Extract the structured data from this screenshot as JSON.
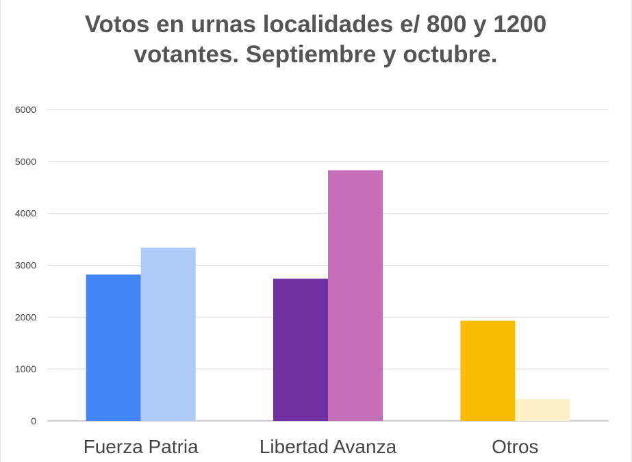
{
  "chart_data": {
    "type": "bar",
    "title": "Votos en urnas localidades e/ 800 y 1200 votantes. Septiembre y octubre.",
    "xlabel": "",
    "ylabel": "",
    "categories": [
      "Fuerza Patria",
      "Libertad Avanza",
      "Otros"
    ],
    "series": [
      {
        "values": [
          2820,
          2740,
          1930
        ],
        "colors": [
          "#4285f4",
          "#7030a0",
          "#fbbc04"
        ]
      },
      {
        "values": [
          3340,
          4830,
          420
        ],
        "colors": [
          "#aecbfa",
          "#c86eb8",
          "#fdf0c8"
        ]
      }
    ],
    "ylim": [
      0,
      6000
    ],
    "yticks": [
      0,
      1000,
      2000,
      3000,
      4000,
      5000,
      6000
    ],
    "grid": true,
    "legend": "none"
  }
}
